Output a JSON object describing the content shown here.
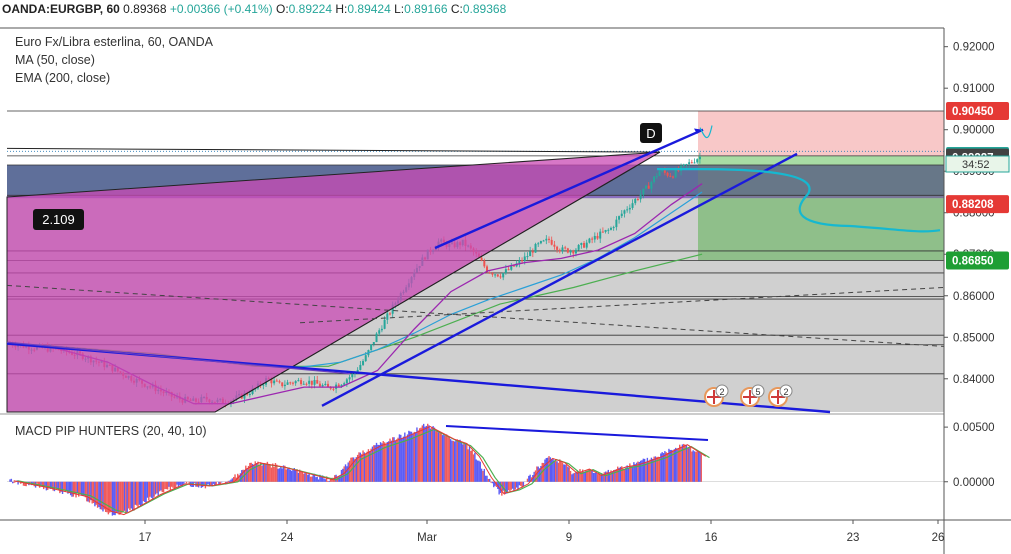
{
  "topbar": {
    "symbol": "OANDA:EURGBP, 60",
    "last": "0.89368",
    "change": "+0.00366 (+0.41%)",
    "o_label": "O:",
    "o": "0.89224",
    "h_label": "H:",
    "h": "0.89424",
    "l_label": "L:",
    "l": "0.89166",
    "c_label": "C:",
    "c": "0.89368"
  },
  "legend": {
    "title": "Euro Fx/Libra esterlina, 60, OANDA",
    "ma": "MA (50, close)",
    "ema": "EMA (200, close)"
  },
  "macd_legend": "MACD PIP HUNTERS (20, 40, 10)",
  "pattern_label": "2.109",
  "point_label": "D",
  "countdown": "34:52",
  "event_badges": [
    "2",
    "5",
    "2"
  ],
  "colors": {
    "up": "#26a69a",
    "down": "#ef5350",
    "hist_up": "#5b5bf5",
    "hist_down": "#f05a5a",
    "trend": "#1a1adc",
    "pattern_fill": "#c94ab4",
    "gray_zone": "#d0d0d0",
    "stop_zone": "#f8c8c8",
    "target_zone": "#a8dca4",
    "ma": "#9c27b0",
    "ema": "#2aa0d8",
    "ema_green": "#4caf50",
    "projection": "#16b8d0"
  },
  "chart_data": [
    {
      "type": "candlestick",
      "symbol": "EURGBP",
      "timeframe": "60",
      "x_ticks": [
        "17",
        "24",
        "Mar",
        "9",
        "16",
        "23",
        "26"
      ],
      "y_ticks": [
        "0.84000",
        "0.85000",
        "0.86000",
        "0.87000",
        "0.88000",
        "0.89000",
        "0.90000",
        "0.91000",
        "0.92000"
      ],
      "ylim": [
        0.832,
        0.9245
      ],
      "price_labels": [
        {
          "value": 0.9045,
          "text": "0.90450",
          "color": "#e53935"
        },
        {
          "value": 0.89368,
          "text": "0.89368",
          "color": "#26a69a"
        },
        {
          "value": 0.89327,
          "text": "0.89327",
          "color": "#424242"
        },
        {
          "value": 0.88208,
          "text": "0.88208",
          "color": "#e53935"
        },
        {
          "value": 0.8685,
          "text": "0.86850",
          "color": "#1e9e34"
        }
      ],
      "price_path": [
        [
          0,
          0.8485
        ],
        [
          2,
          0.8475
        ],
        [
          4,
          0.847
        ],
        [
          6,
          0.8455
        ],
        [
          8,
          0.843
        ],
        [
          10,
          0.84
        ],
        [
          12,
          0.8375
        ],
        [
          13,
          0.836
        ],
        [
          14,
          0.835
        ],
        [
          15,
          0.8345
        ],
        [
          16,
          0.8352
        ],
        [
          17,
          0.8345
        ],
        [
          18,
          0.8348
        ],
        [
          19,
          0.836
        ],
        [
          20,
          0.8375
        ],
        [
          21,
          0.84
        ],
        [
          22,
          0.8385
        ],
        [
          23,
          0.8392
        ],
        [
          24,
          0.8396
        ],
        [
          25,
          0.8388
        ],
        [
          26,
          0.8378
        ],
        [
          27,
          0.839
        ],
        [
          28,
          0.841
        ],
        [
          29,
          0.845
        ],
        [
          30,
          0.851
        ],
        [
          31,
          0.856
        ],
        [
          32,
          0.861
        ],
        [
          33,
          0.866
        ],
        [
          34,
          0.87
        ],
        [
          35,
          0.873
        ],
        [
          36,
          0.872
        ],
        [
          37,
          0.8728
        ],
        [
          38,
          0.87
        ],
        [
          39,
          0.866
        ],
        [
          40,
          0.865
        ],
        [
          41,
          0.8668
        ],
        [
          42,
          0.869
        ],
        [
          43,
          0.872
        ],
        [
          44,
          0.8735
        ],
        [
          45,
          0.871
        ],
        [
          46,
          0.871
        ],
        [
          47,
          0.8725
        ],
        [
          48,
          0.8745
        ],
        [
          49,
          0.876
        ],
        [
          50,
          0.88
        ],
        [
          51,
          0.883
        ],
        [
          52,
          0.886
        ],
        [
          53,
          0.89
        ],
        [
          54,
          0.889
        ],
        [
          55,
          0.891
        ],
        [
          56,
          0.893
        ],
        [
          56.5,
          0.89368
        ]
      ],
      "ma_50": [
        [
          3,
          0.848
        ],
        [
          8,
          0.844
        ],
        [
          12,
          0.838
        ],
        [
          15,
          0.834
        ],
        [
          18,
          0.834
        ],
        [
          21,
          0.836
        ],
        [
          24,
          0.838
        ],
        [
          27,
          0.838
        ],
        [
          30,
          0.842
        ],
        [
          33,
          0.852
        ],
        [
          36,
          0.861
        ],
        [
          39,
          0.866
        ],
        [
          42,
          0.868
        ],
        [
          45,
          0.869
        ],
        [
          48,
          0.871
        ],
        [
          51,
          0.875
        ],
        [
          54,
          0.882
        ],
        [
          56.5,
          0.887
        ]
      ],
      "ema_200": [
        [
          23,
          0.8425
        ],
        [
          27,
          0.844
        ],
        [
          30,
          0.847
        ],
        [
          33,
          0.851
        ],
        [
          36,
          0.8555
        ],
        [
          39,
          0.859
        ],
        [
          42,
          0.862
        ],
        [
          45,
          0.865
        ],
        [
          48,
          0.869
        ],
        [
          51,
          0.874
        ],
        [
          54,
          0.88
        ],
        [
          56.5,
          0.885
        ]
      ],
      "ema_green": [
        [
          3,
          0.848
        ],
        [
          12,
          0.846
        ],
        [
          20,
          0.843
        ],
        [
          26,
          0.843
        ],
        [
          33,
          0.85
        ],
        [
          40,
          0.858
        ],
        [
          46,
          0.862
        ],
        [
          51,
          0.866
        ],
        [
          56.5,
          0.87
        ]
      ],
      "macd_histogram": {
        "ylim": [
          -0.0035,
          0.0062
        ],
        "y_ticks": [
          "0.00000",
          "0.00500"
        ],
        "points": [
          [
            0,
            0.0001
          ],
          [
            3,
            -0.0006
          ],
          [
            6,
            -0.0014
          ],
          [
            8,
            -0.0028
          ],
          [
            9,
            -0.0031
          ],
          [
            10,
            -0.0025
          ],
          [
            12,
            -0.0012
          ],
          [
            14,
            -0.0002
          ],
          [
            16,
            -0.0004
          ],
          [
            18,
            0.0
          ],
          [
            19,
            0.0012
          ],
          [
            20,
            0.0018
          ],
          [
            22,
            0.0014
          ],
          [
            24,
            0.0008
          ],
          [
            26,
            0.0002
          ],
          [
            27,
            0.0008
          ],
          [
            28,
            0.0022
          ],
          [
            30,
            0.0034
          ],
          [
            32,
            0.0042
          ],
          [
            34,
            0.0052
          ],
          [
            35,
            0.0046
          ],
          [
            36,
            0.004
          ],
          [
            37,
            0.0036
          ],
          [
            38,
            0.0024
          ],
          [
            39,
            0.0004
          ],
          [
            40,
            -0.0011
          ],
          [
            41,
            -0.0008
          ],
          [
            42,
            -0.0002
          ],
          [
            43,
            0.0012
          ],
          [
            44,
            0.0022
          ],
          [
            45,
            0.0018
          ],
          [
            46,
            0.0008
          ],
          [
            47,
            0.0012
          ],
          [
            48,
            0.0006
          ],
          [
            49,
            0.001
          ],
          [
            50,
            0.0014
          ],
          [
            51,
            0.0016
          ],
          [
            52,
            0.002
          ],
          [
            53,
            0.0024
          ],
          [
            54,
            0.003
          ],
          [
            55,
            0.0035
          ],
          [
            56.5,
            0.0024
          ]
        ]
      }
    }
  ]
}
